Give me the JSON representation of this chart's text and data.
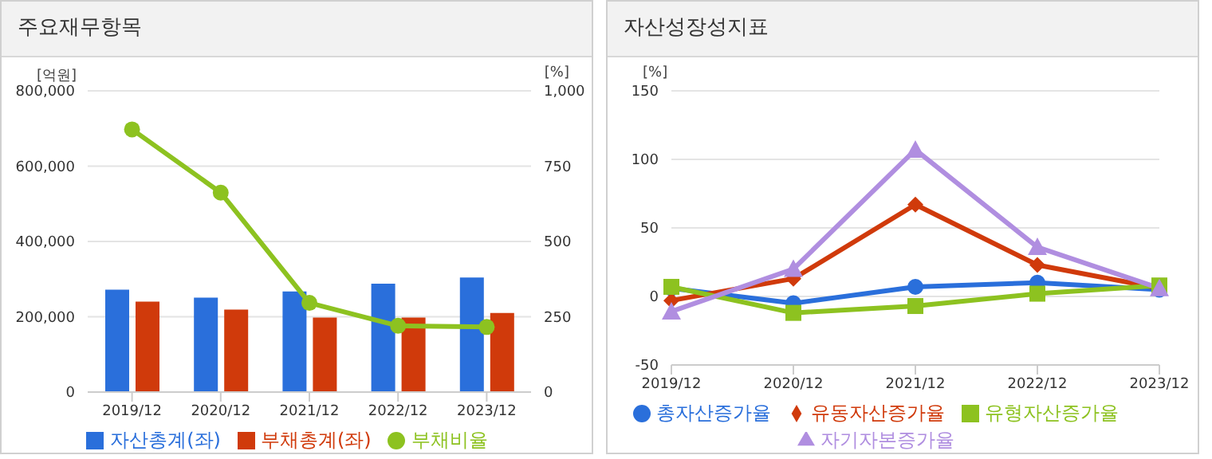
{
  "chart_data": [
    {
      "type": "bar",
      "title": "주요재무항목",
      "ylabel": "[억원]",
      "y2label": "[%]",
      "categories": [
        "2019/12",
        "2020/12",
        "2021/12",
        "2022/12",
        "2023/12"
      ],
      "series": [
        {
          "name": "자산총계(좌)",
          "color": "#2a6fdb",
          "values": [
            272000,
            251000,
            267000,
            288000,
            304000
          ]
        },
        {
          "name": "부채총계(좌)",
          "color": "#d03a0b",
          "values": [
            240000,
            219000,
            198000,
            198000,
            210000
          ]
        },
        {
          "name": "부채비율",
          "type": "line",
          "axis": "y2",
          "marker": "circle",
          "color": "#8dc220",
          "values": [
            872,
            662,
            296,
            220,
            216
          ]
        }
      ],
      "ylim": [
        0,
        800000
      ],
      "yticks": [
        0,
        {
          "value": 200000,
          "label": "200,000"
        },
        {
          "value": 400000,
          "label": "400,000"
        },
        {
          "value": 600000,
          "label": "600,000"
        },
        {
          "value": 800000,
          "label": "800,000"
        }
      ],
      "y2lim": [
        0,
        1000
      ],
      "y2ticks": [
        0,
        250,
        500,
        750,
        {
          "value": 1000,
          "label": "1,000"
        }
      ],
      "grid": "y",
      "legend": "bottom"
    },
    {
      "type": "line",
      "title": "자산성장성지표",
      "ylabel": "[%]",
      "categories": [
        "2019/12",
        "2020/12",
        "2021/12",
        "2022/12",
        "2023/12"
      ],
      "series": [
        {
          "name": "총자산증가율",
          "color": "#2a6fdb",
          "marker": "circle",
          "values": [
            6,
            -5,
            7,
            10,
            5
          ]
        },
        {
          "name": "유동자산증가율",
          "color": "#d03a0b",
          "marker": "diamond",
          "values": [
            -3,
            13,
            67,
            23,
            6
          ]
        },
        {
          "name": "유형자산증가율",
          "color": "#8dc220",
          "marker": "square",
          "values": [
            7,
            -12,
            -7,
            2,
            8
          ]
        },
        {
          "name": "자기자본증가율",
          "color": "#b08ee0",
          "marker": "triangle",
          "values": [
            -11,
            20,
            107,
            36,
            6
          ]
        }
      ],
      "ylim": [
        -50,
        150
      ],
      "yticks": [
        -50,
        0,
        50,
        100,
        150
      ],
      "grid": "y",
      "legend": "bottom"
    }
  ]
}
